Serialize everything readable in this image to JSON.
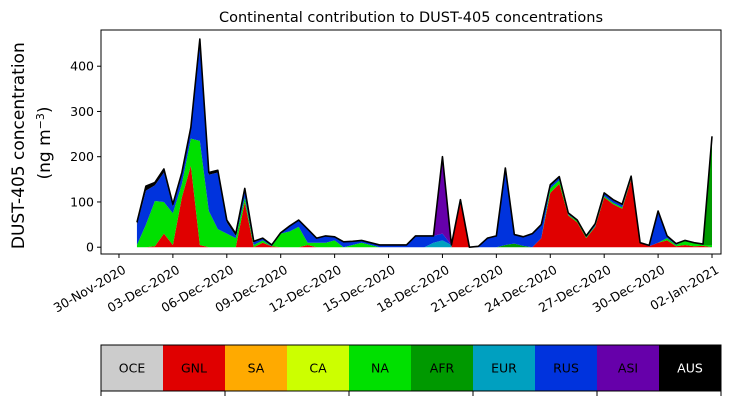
{
  "chart_data": {
    "type": "area",
    "stacked": true,
    "title": "Continental contribution to DUST-405 concentrations",
    "ylabel_line1": "DUST-405 concentration",
    "ylabel_line2_prefix": "(ng m",
    "ylabel_line2_sup": "−3",
    "ylabel_line2_suffix": ")",
    "ylim": [
      -15,
      480
    ],
    "xlim": [
      "2020-11-29",
      "2021-01-02T12:00"
    ],
    "yticks": [
      0,
      100,
      200,
      300,
      400
    ],
    "xticks": [
      "2020-11-30",
      "2020-12-03",
      "2020-12-06",
      "2020-12-09",
      "2020-12-12",
      "2020-12-15",
      "2020-12-18",
      "2020-12-21",
      "2020-12-24",
      "2020-12-27",
      "2020-12-30",
      "2021-01-02"
    ],
    "xtick_labels": [
      "30-Nov-2020",
      "03-Dec-2020",
      "06-Dec-2020",
      "09-Dec-2020",
      "12-Dec-2020",
      "15-Dec-2020",
      "18-Dec-2020",
      "21-Dec-2020",
      "24-Dec-2020",
      "27-Dec-2020",
      "30-Dec-2020",
      "02-Jan-2021"
    ],
    "grid": false,
    "dates": [
      "2020-12-01",
      "2020-12-01T12:00",
      "2020-12-02",
      "2020-12-02T12:00",
      "2020-12-03",
      "2020-12-03T12:00",
      "2020-12-04",
      "2020-12-04T12:00",
      "2020-12-05",
      "2020-12-05T12:00",
      "2020-12-06",
      "2020-12-06T12:00",
      "2020-12-07",
      "2020-12-07T12:00",
      "2020-12-08",
      "2020-12-08T12:00",
      "2020-12-09",
      "2020-12-09T12:00",
      "2020-12-10",
      "2020-12-10T12:00",
      "2020-12-11",
      "2020-12-11T12:00",
      "2020-12-12",
      "2020-12-12T12:00",
      "2020-12-13",
      "2020-12-13T12:00",
      "2020-12-14",
      "2020-12-14T12:00",
      "2020-12-15",
      "2020-12-15T12:00",
      "2020-12-16",
      "2020-12-16T12:00",
      "2020-12-17",
      "2020-12-17T12:00",
      "2020-12-18",
      "2020-12-18T12:00",
      "2020-12-19",
      "2020-12-19T12:00",
      "2020-12-20",
      "2020-12-20T12:00",
      "2020-12-21",
      "2020-12-21T12:00",
      "2020-12-22",
      "2020-12-22T12:00",
      "2020-12-23",
      "2020-12-23T12:00",
      "2020-12-24",
      "2020-12-24T12:00",
      "2020-12-25",
      "2020-12-25T12:00",
      "2020-12-26",
      "2020-12-26T12:00",
      "2020-12-27",
      "2020-12-27T12:00",
      "2020-12-28",
      "2020-12-28T12:00",
      "2020-12-29",
      "2020-12-29T12:00",
      "2020-12-30",
      "2020-12-30T12:00",
      "2020-12-31",
      "2020-12-31T12:00",
      "2021-01-01",
      "2021-01-01T12:00",
      "2021-01-02"
    ],
    "series": [
      {
        "name": "OCE",
        "color": "#cccccc",
        "values": [
          0,
          0,
          0,
          0,
          0,
          0,
          0,
          0,
          0,
          0,
          0,
          0,
          0,
          0,
          0,
          0,
          0,
          0,
          0,
          0,
          0,
          0,
          0,
          0,
          0,
          0,
          0,
          0,
          0,
          0,
          0,
          0,
          0,
          0,
          0,
          0,
          0,
          0,
          0,
          0,
          0,
          0,
          0,
          0,
          0,
          0,
          0,
          0,
          0,
          0,
          0,
          0,
          0,
          0,
          0,
          0,
          0,
          0,
          0,
          0,
          0,
          0,
          0,
          0,
          0
        ]
      },
      {
        "name": "GNL",
        "color": "#e00000",
        "values": [
          0,
          0,
          2,
          30,
          5,
          110,
          180,
          5,
          0,
          0,
          0,
          0,
          100,
          0,
          10,
          2,
          0,
          0,
          0,
          5,
          0,
          0,
          0,
          0,
          0,
          0,
          0,
          0,
          0,
          0,
          0,
          0,
          0,
          0,
          0,
          0,
          100,
          0,
          0,
          0,
          0,
          0,
          0,
          0,
          0,
          20,
          120,
          140,
          70,
          55,
          20,
          45,
          110,
          95,
          85,
          150,
          10,
          2,
          10,
          15,
          2,
          5,
          2,
          3,
          0
        ]
      },
      {
        "name": "SA",
        "color": "#ffaa00",
        "values": [
          0,
          0,
          0,
          0,
          0,
          0,
          0,
          0,
          0,
          0,
          0,
          0,
          0,
          0,
          0,
          0,
          0,
          0,
          0,
          0,
          0,
          0,
          0,
          0,
          0,
          0,
          0,
          0,
          0,
          0,
          0,
          0,
          0,
          0,
          0,
          0,
          0,
          0,
          0,
          0,
          0,
          0,
          0,
          0,
          0,
          0,
          0,
          0,
          0,
          0,
          0,
          0,
          0,
          0,
          0,
          0,
          0,
          0,
          0,
          0,
          0,
          0,
          0,
          0,
          0
        ]
      },
      {
        "name": "CA",
        "color": "#ccff00",
        "values": [
          0,
          0,
          0,
          0,
          0,
          0,
          0,
          0,
          0,
          0,
          0,
          0,
          0,
          0,
          0,
          0,
          0,
          0,
          0,
          0,
          0,
          0,
          0,
          0,
          0,
          0,
          0,
          0,
          0,
          0,
          0,
          0,
          0,
          0,
          0,
          0,
          0,
          0,
          0,
          0,
          0,
          0,
          0,
          0,
          0,
          0,
          0,
          0,
          0,
          0,
          0,
          0,
          0,
          0,
          0,
          0,
          0,
          0,
          0,
          0,
          0,
          0,
          0,
          0,
          0
        ]
      },
      {
        "name": "NA",
        "color": "#00e000",
        "values": [
          5,
          50,
          100,
          70,
          70,
          30,
          60,
          230,
          80,
          40,
          30,
          20,
          10,
          5,
          5,
          0,
          30,
          35,
          45,
          5,
          10,
          10,
          15,
          0,
          5,
          10,
          5,
          0,
          0,
          0,
          0,
          0,
          0,
          0,
          0,
          0,
          0,
          0,
          0,
          0,
          0,
          0,
          0,
          0,
          0,
          0,
          10,
          8,
          2,
          3,
          2,
          2,
          3,
          3,
          3,
          2,
          0,
          0,
          0,
          5,
          3,
          10,
          8,
          2,
          5
        ]
      },
      {
        "name": "AFR",
        "color": "#009900",
        "values": [
          0,
          0,
          0,
          0,
          0,
          0,
          0,
          0,
          0,
          0,
          0,
          0,
          0,
          0,
          0,
          0,
          0,
          0,
          0,
          0,
          0,
          0,
          0,
          0,
          0,
          0,
          0,
          0,
          0,
          0,
          0,
          0,
          0,
          0,
          0,
          0,
          0,
          0,
          0,
          0,
          0,
          5,
          8,
          3,
          0,
          0,
          0,
          0,
          0,
          0,
          0,
          0,
          0,
          0,
          0,
          0,
          0,
          0,
          0,
          0,
          0,
          0,
          0,
          0,
          230
        ]
      },
      {
        "name": "EUR",
        "color": "#00a0c0",
        "values": [
          0,
          0,
          0,
          0,
          0,
          0,
          0,
          0,
          0,
          0,
          0,
          0,
          0,
          0,
          0,
          0,
          0,
          0,
          0,
          0,
          0,
          0,
          0,
          0,
          0,
          0,
          0,
          0,
          0,
          0,
          0,
          0,
          0,
          10,
          15,
          5,
          0,
          0,
          0,
          0,
          0,
          0,
          0,
          0,
          0,
          0,
          0,
          0,
          0,
          0,
          0,
          0,
          0,
          0,
          0,
          0,
          0,
          0,
          0,
          0,
          0,
          0,
          0,
          0,
          0
        ]
      },
      {
        "name": "RUS",
        "color": "#0033dd",
        "values": [
          45,
          75,
          35,
          65,
          15,
          20,
          20,
          210,
          80,
          125,
          25,
          5,
          15,
          8,
          5,
          3,
          2,
          12,
          15,
          30,
          10,
          15,
          8,
          12,
          8,
          5,
          5,
          5,
          5,
          5,
          5,
          25,
          25,
          15,
          15,
          0,
          0,
          0,
          2,
          20,
          25,
          170,
          20,
          20,
          30,
          30,
          5,
          5,
          2,
          0,
          3,
          5,
          5,
          5,
          5,
          3,
          0,
          2,
          70,
          5,
          3,
          0,
          0,
          2,
          0
        ]
      },
      {
        "name": "ASI",
        "color": "#6600aa",
        "values": [
          0,
          0,
          0,
          0,
          0,
          0,
          0,
          0,
          0,
          0,
          0,
          0,
          0,
          0,
          0,
          0,
          0,
          0,
          0,
          0,
          0,
          0,
          0,
          0,
          0,
          0,
          0,
          0,
          0,
          0,
          0,
          0,
          0,
          0,
          170,
          0,
          0,
          0,
          0,
          0,
          0,
          0,
          0,
          0,
          0,
          0,
          0,
          0,
          0,
          0,
          0,
          0,
          0,
          0,
          0,
          0,
          0,
          0,
          0,
          0,
          0,
          0,
          0,
          0,
          0
        ]
      },
      {
        "name": "AUS",
        "color": "#000000",
        "values": [
          5,
          10,
          6,
          8,
          5,
          5,
          5,
          15,
          5,
          5,
          5,
          5,
          5,
          0,
          0,
          0,
          0,
          0,
          0,
          0,
          0,
          0,
          0,
          0,
          0,
          0,
          0,
          0,
          0,
          0,
          0,
          0,
          0,
          0,
          0,
          0,
          5,
          0,
          0,
          0,
          0,
          0,
          0,
          0,
          0,
          0,
          3,
          3,
          2,
          2,
          0,
          0,
          2,
          2,
          2,
          2,
          0,
          0,
          0,
          0,
          0,
          0,
          0,
          0,
          10
        ]
      }
    ],
    "legend": {
      "placement": "bottom",
      "entries": [
        {
          "label": "OCE",
          "color": "#cccccc",
          "text_color": "#000000"
        },
        {
          "label": "GNL",
          "color": "#e00000",
          "text_color": "#000000"
        },
        {
          "label": "SA",
          "color": "#ffaa00",
          "text_color": "#000000"
        },
        {
          "label": "CA",
          "color": "#ccff00",
          "text_color": "#000000"
        },
        {
          "label": "NA",
          "color": "#00e000",
          "text_color": "#000000"
        },
        {
          "label": "AFR",
          "color": "#009900",
          "text_color": "#000000"
        },
        {
          "label": "EUR",
          "color": "#00a0c0",
          "text_color": "#000000"
        },
        {
          "label": "RUS",
          "color": "#0033dd",
          "text_color": "#000000"
        },
        {
          "label": "ASI",
          "color": "#6600aa",
          "text_color": "#000000"
        },
        {
          "label": "AUS",
          "color": "#000000",
          "text_color": "#ffffff"
        }
      ]
    }
  }
}
